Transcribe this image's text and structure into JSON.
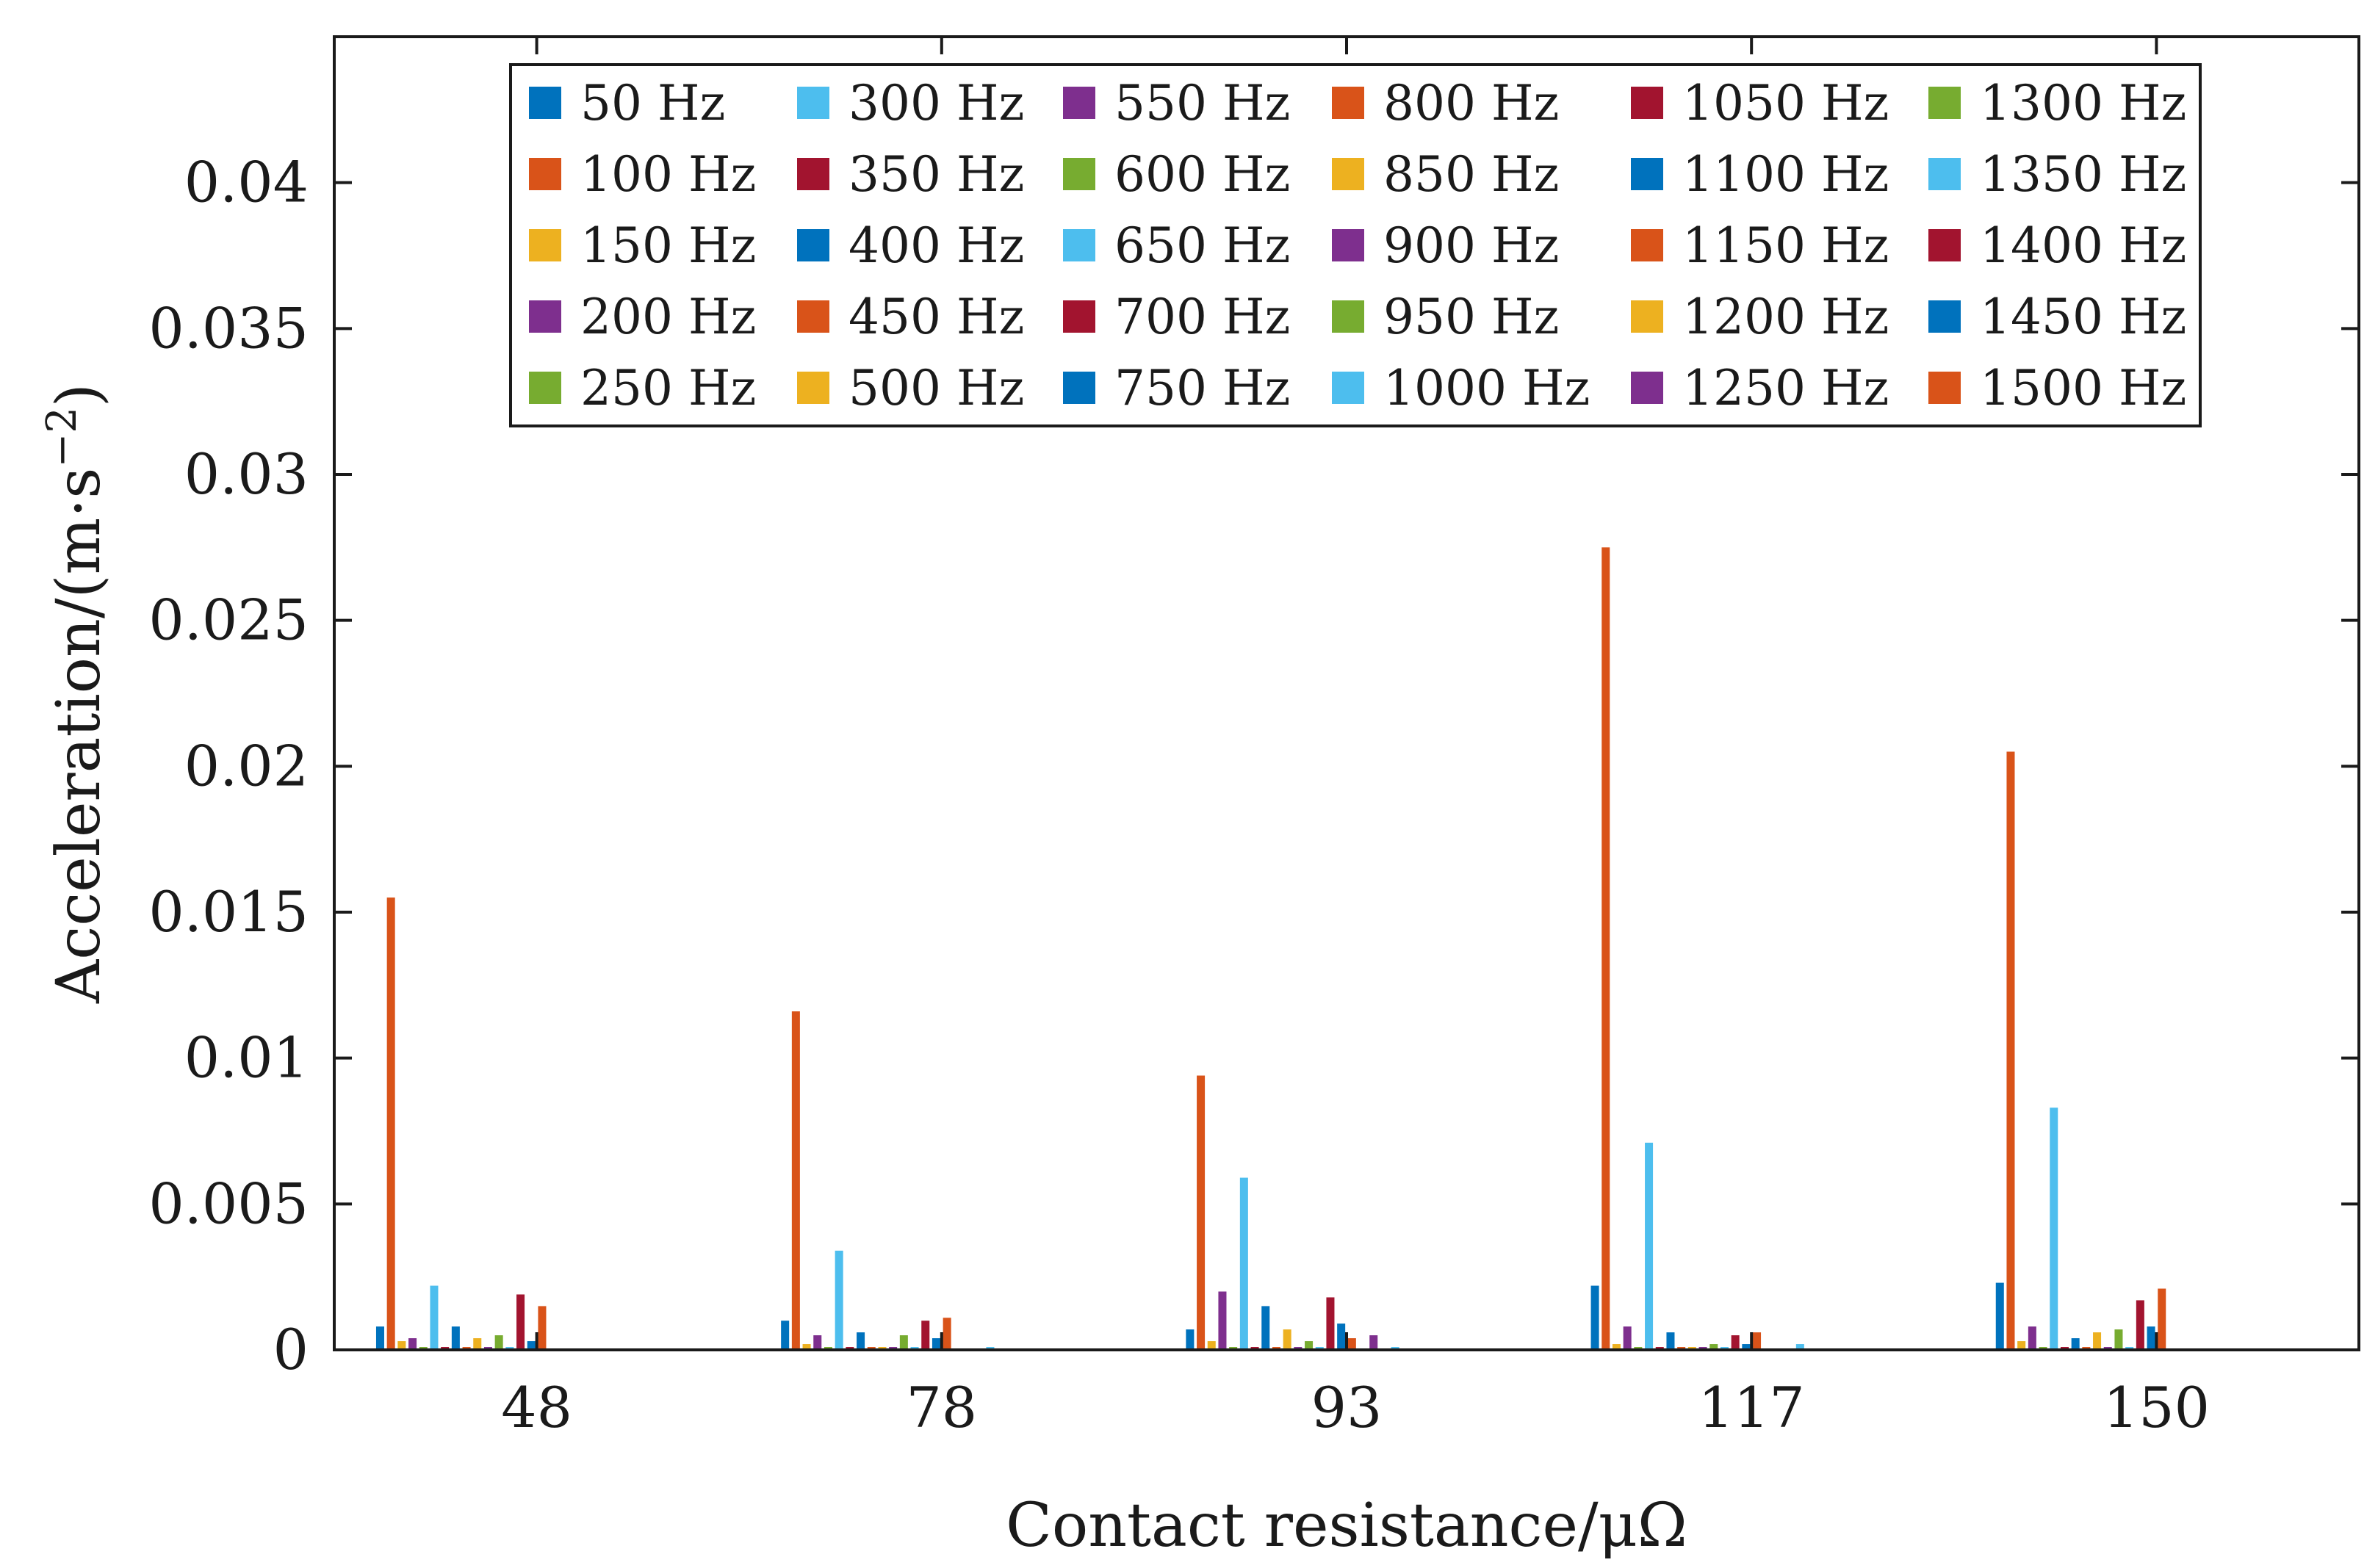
{
  "chart_data": {
    "type": "bar",
    "title": "",
    "xlabel": "Contact resistance/μΩ",
    "ylabel": "Acceleration/(m·s",
    "ylabel_exponent": "−2",
    "ylabel_close": ")",
    "ylim": [
      0,
      0.045
    ],
    "yticks": [
      0,
      0.005,
      0.01,
      0.015,
      0.02,
      0.025,
      0.03,
      0.035,
      0.04
    ],
    "ytick_labels": [
      "0",
      "0.005",
      "0.01",
      "0.015",
      "0.02",
      "0.025",
      "0.03",
      "0.035",
      "0.04"
    ],
    "categories": [
      "48",
      "78",
      "93",
      "117",
      "150"
    ],
    "legend_position": "top",
    "grid": false,
    "series": [
      {
        "name": "50 Hz",
        "color": "#0072BD",
        "values": [
          0.0008,
          0.001,
          0.0007,
          0.0022,
          0.0023
        ]
      },
      {
        "name": "100 Hz",
        "color": "#D95319",
        "values": [
          0.0155,
          0.0116,
          0.0094,
          0.0275,
          0.0205
        ]
      },
      {
        "name": "150 Hz",
        "color": "#EDB120",
        "values": [
          0.0003,
          0.0002,
          0.0003,
          0.0002,
          0.0003
        ]
      },
      {
        "name": "200 Hz",
        "color": "#7E2F8E",
        "values": [
          0.0004,
          0.0005,
          0.002,
          0.0008,
          0.0008
        ]
      },
      {
        "name": "250 Hz",
        "color": "#77AC30",
        "values": [
          0.0001,
          0.0001,
          0.0001,
          0.0001,
          0.0001
        ]
      },
      {
        "name": "300 Hz",
        "color": "#4DBEEE",
        "values": [
          0.0022,
          0.0034,
          0.0059,
          0.0071,
          0.0083
        ]
      },
      {
        "name": "350 Hz",
        "color": "#A2142F",
        "values": [
          0.0001,
          0.0001,
          0.0001,
          0.0001,
          0.0001
        ]
      },
      {
        "name": "400 Hz",
        "color": "#0072BD",
        "values": [
          0.0008,
          0.0006,
          0.0015,
          0.0006,
          0.0004
        ]
      },
      {
        "name": "450 Hz",
        "color": "#D95319",
        "values": [
          0.0001,
          0.0001,
          0.0001,
          0.0001,
          0.0001
        ]
      },
      {
        "name": "500 Hz",
        "color": "#EDB120",
        "values": [
          0.0004,
          0.0001,
          0.0007,
          0.0001,
          0.0006
        ]
      },
      {
        "name": "550 Hz",
        "color": "#7E2F8E",
        "values": [
          0.0001,
          0.0001,
          0.0001,
          0.0001,
          0.0001
        ]
      },
      {
        "name": "600 Hz",
        "color": "#77AC30",
        "values": [
          0.0005,
          0.0005,
          0.0003,
          0.0002,
          0.0007
        ]
      },
      {
        "name": "650 Hz",
        "color": "#4DBEEE",
        "values": [
          0.0001,
          0.0001,
          0.0001,
          0.0001,
          0.0001
        ]
      },
      {
        "name": "700 Hz",
        "color": "#A2142F",
        "values": [
          0.0019,
          0.001,
          0.0018,
          0.0005,
          0.0017
        ]
      },
      {
        "name": "750 Hz",
        "color": "#0072BD",
        "values": [
          0.0003,
          0.0004,
          0.0009,
          0.0002,
          0.0008
        ]
      },
      {
        "name": "800 Hz",
        "color": "#D95319",
        "values": [
          0.0015,
          0.0011,
          0.0004,
          0.0006,
          0.0021
        ]
      },
      {
        "name": "850 Hz",
        "color": "#EDB120",
        "values": [
          0,
          0,
          0,
          0,
          0
        ]
      },
      {
        "name": "900 Hz",
        "color": "#7E2F8E",
        "values": [
          0,
          0,
          0.0005,
          0,
          0
        ]
      },
      {
        "name": "950 Hz",
        "color": "#77AC30",
        "values": [
          0,
          0,
          0,
          0,
          0
        ]
      },
      {
        "name": "1000 Hz",
        "color": "#4DBEEE",
        "values": [
          0,
          0.0001,
          0.0001,
          0.0002,
          0
        ]
      },
      {
        "name": "1050 Hz",
        "color": "#A2142F",
        "values": [
          0,
          0,
          0,
          0,
          0
        ]
      },
      {
        "name": "1100 Hz",
        "color": "#0072BD",
        "values": [
          0,
          0,
          0,
          0,
          0
        ]
      },
      {
        "name": "1150 Hz",
        "color": "#D95319",
        "values": [
          0,
          0,
          0,
          0,
          0
        ]
      },
      {
        "name": "1200 Hz",
        "color": "#EDB120",
        "values": [
          0,
          0,
          0,
          0,
          0
        ]
      },
      {
        "name": "1250 Hz",
        "color": "#7E2F8E",
        "values": [
          0,
          0,
          0,
          0,
          0
        ]
      },
      {
        "name": "1300 Hz",
        "color": "#77AC30",
        "values": [
          0,
          0,
          0,
          0,
          0
        ]
      },
      {
        "name": "1350 Hz",
        "color": "#4DBEEE",
        "values": [
          0,
          0,
          0,
          0,
          0
        ]
      },
      {
        "name": "1400 Hz",
        "color": "#A2142F",
        "values": [
          0,
          0,
          0,
          0,
          0
        ]
      },
      {
        "name": "1450 Hz",
        "color": "#0072BD",
        "values": [
          0,
          0,
          0,
          0,
          0
        ]
      },
      {
        "name": "1500 Hz",
        "color": "#D95319",
        "values": [
          0,
          0,
          0,
          0,
          0
        ]
      }
    ]
  }
}
